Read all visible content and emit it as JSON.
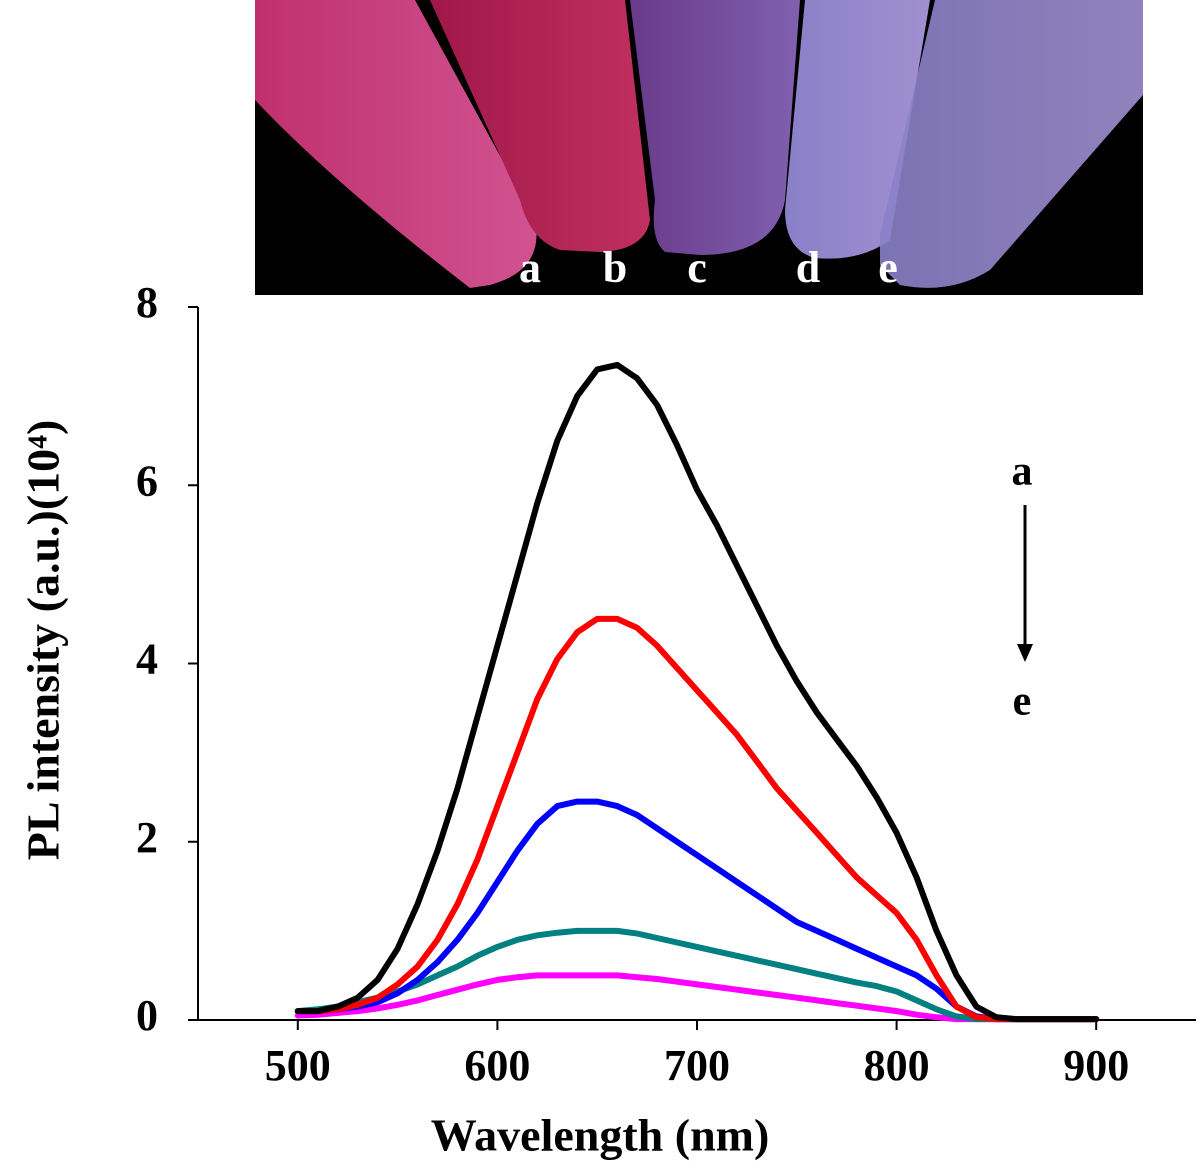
{
  "chart_data": {
    "type": "line",
    "xlabel": "Wavelength (nm)",
    "ylabel": "PL intensity (a.u.)(10⁴)",
    "x": [
      500,
      510,
      520,
      530,
      540,
      550,
      560,
      570,
      580,
      590,
      600,
      610,
      620,
      630,
      640,
      650,
      660,
      670,
      680,
      690,
      700,
      710,
      720,
      730,
      740,
      750,
      760,
      770,
      780,
      790,
      800,
      810,
      820,
      830,
      840,
      850,
      860,
      870,
      880,
      890,
      900
    ],
    "series": [
      {
        "name": "a",
        "color": "#000000",
        "values": [
          0.1,
          0.1,
          0.15,
          0.25,
          0.45,
          0.8,
          1.3,
          1.9,
          2.6,
          3.4,
          4.2,
          5.0,
          5.8,
          6.5,
          7.0,
          7.3,
          7.35,
          7.2,
          6.9,
          6.45,
          5.95,
          5.55,
          5.1,
          4.65,
          4.2,
          3.8,
          3.45,
          3.15,
          2.85,
          2.5,
          2.1,
          1.6,
          1.0,
          0.5,
          0.15,
          0.03,
          0.01,
          0.01,
          0.01,
          0.01,
          0.01
        ]
      },
      {
        "name": "b",
        "color": "#ff0000",
        "values": [
          0.1,
          0.1,
          0.12,
          0.17,
          0.25,
          0.4,
          0.6,
          0.9,
          1.3,
          1.8,
          2.4,
          3.0,
          3.6,
          4.05,
          4.35,
          4.5,
          4.5,
          4.4,
          4.2,
          3.95,
          3.7,
          3.45,
          3.2,
          2.9,
          2.6,
          2.35,
          2.1,
          1.85,
          1.6,
          1.4,
          1.2,
          0.9,
          0.5,
          0.15,
          0.03,
          0.01,
          0.01,
          0.01,
          0.01,
          0.01,
          0.01
        ]
      },
      {
        "name": "c",
        "color": "#0000ff",
        "values": [
          0.1,
          0.1,
          0.12,
          0.15,
          0.2,
          0.3,
          0.45,
          0.65,
          0.9,
          1.2,
          1.55,
          1.9,
          2.2,
          2.4,
          2.45,
          2.45,
          2.4,
          2.3,
          2.15,
          2.0,
          1.85,
          1.7,
          1.55,
          1.4,
          1.25,
          1.1,
          1.0,
          0.9,
          0.8,
          0.7,
          0.6,
          0.5,
          0.35,
          0.15,
          0.04,
          0.01,
          0.01,
          0.01,
          0.01,
          0.01,
          0.01
        ]
      },
      {
        "name": "d",
        "color": "#008080",
        "values": [
          0.1,
          0.12,
          0.15,
          0.2,
          0.25,
          0.32,
          0.4,
          0.5,
          0.6,
          0.72,
          0.82,
          0.9,
          0.95,
          0.98,
          1.0,
          1.0,
          1.0,
          0.97,
          0.92,
          0.87,
          0.82,
          0.77,
          0.72,
          0.67,
          0.62,
          0.57,
          0.52,
          0.47,
          0.42,
          0.38,
          0.32,
          0.22,
          0.12,
          0.04,
          0.01,
          0.01,
          0.01,
          0.01,
          0.01,
          0.01,
          0.01
        ]
      },
      {
        "name": "e",
        "color": "#ff00ff",
        "values": [
          0.05,
          0.06,
          0.08,
          0.1,
          0.13,
          0.17,
          0.22,
          0.28,
          0.34,
          0.4,
          0.45,
          0.48,
          0.5,
          0.5,
          0.5,
          0.5,
          0.5,
          0.48,
          0.46,
          0.43,
          0.4,
          0.37,
          0.34,
          0.31,
          0.28,
          0.25,
          0.22,
          0.19,
          0.16,
          0.13,
          0.1,
          0.06,
          0.03,
          0.01,
          0.01,
          0.01,
          0.01,
          0.01,
          0.01,
          0.01,
          0.01
        ]
      }
    ],
    "xlim": [
      450,
      950
    ],
    "xticks": [
      500,
      600,
      700,
      800,
      900
    ],
    "ylim": [
      0,
      8
    ],
    "yticks": [
      0,
      2,
      4,
      6,
      8
    ]
  }
}
